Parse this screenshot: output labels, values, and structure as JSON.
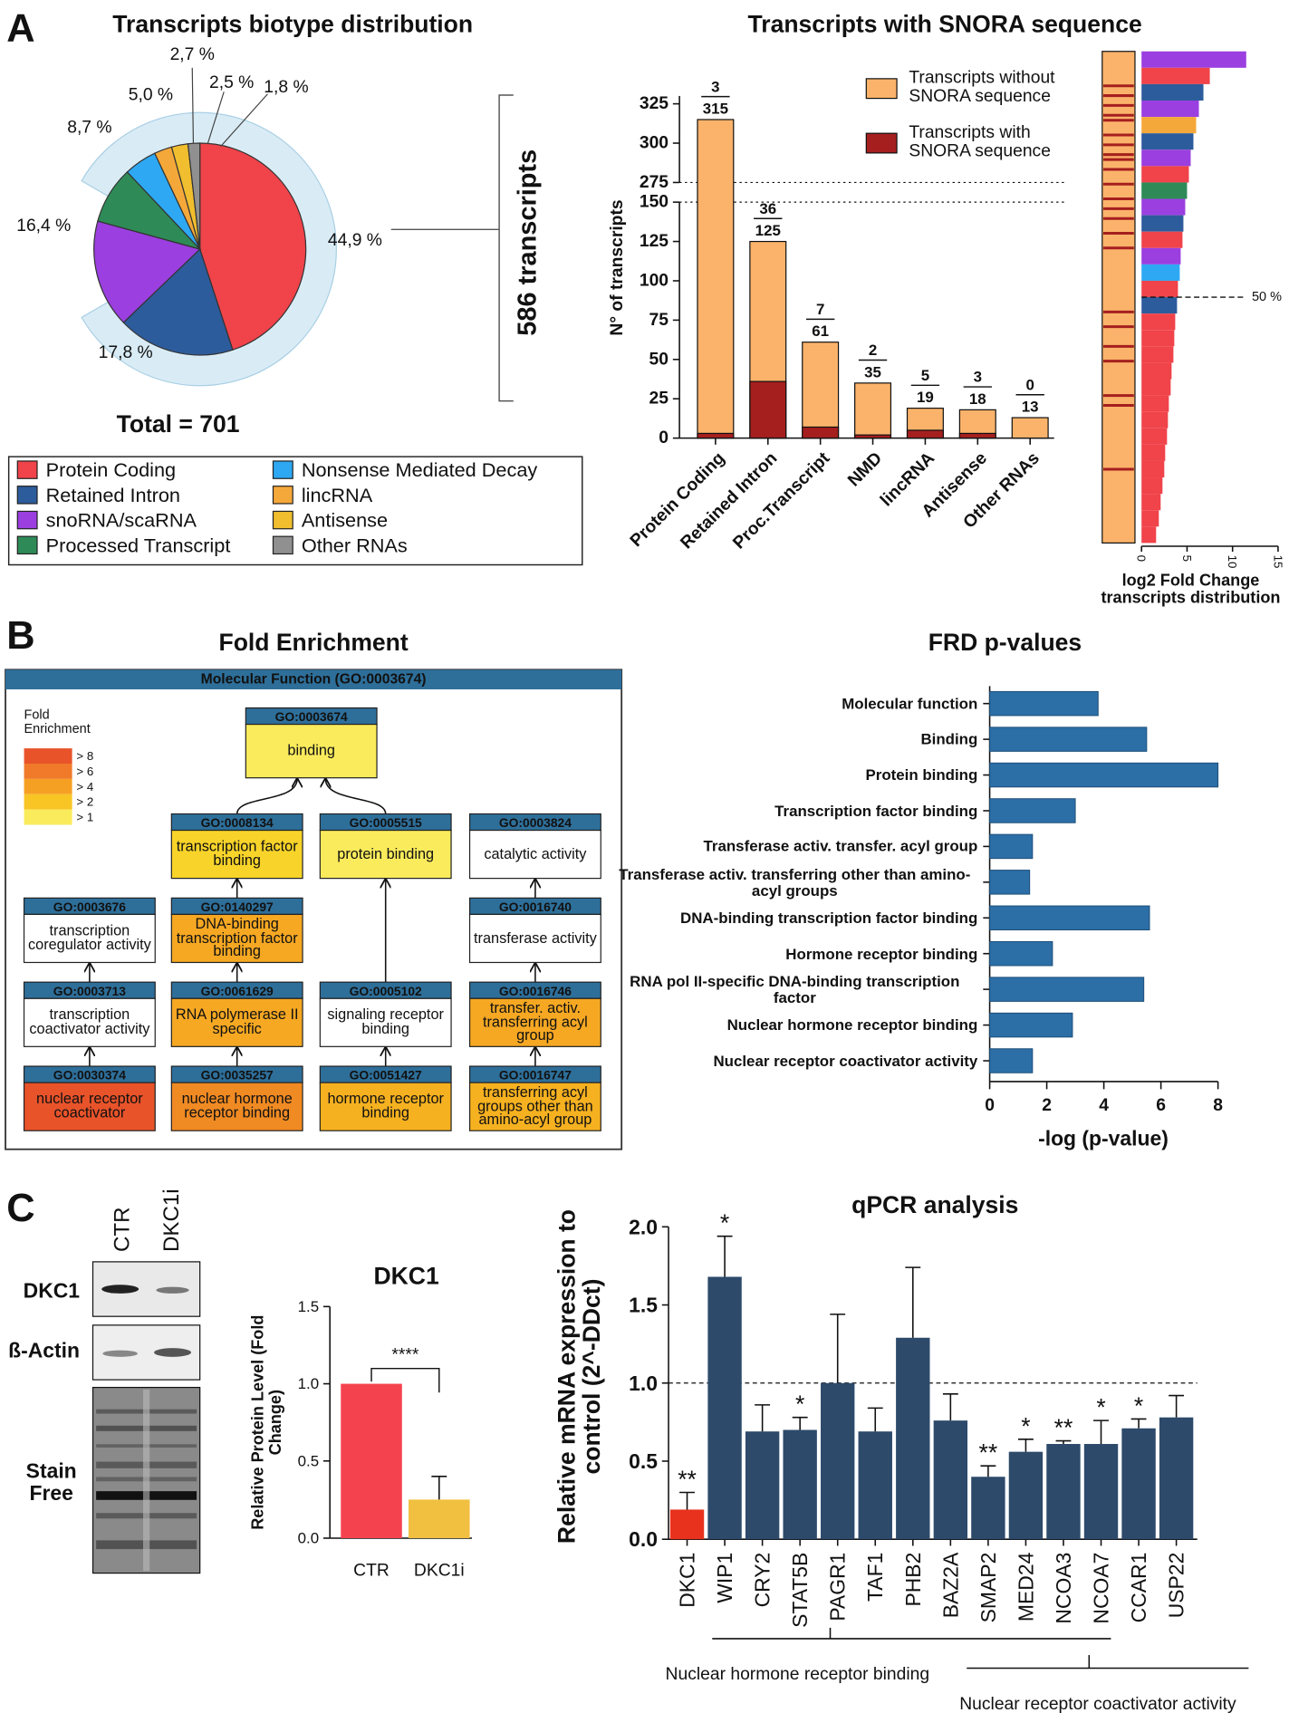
{
  "panels": [
    "A",
    "B",
    "C"
  ],
  "chart_data": [
    {
      "type": "pie",
      "title": "Transcripts biotype distribution",
      "categories": [
        "Protein Coding",
        "Retained Intron",
        "snoRNA/scaRNA",
        "Processed Transcript",
        "Nonsense Mediated Decay",
        "lincRNA",
        "Antisense",
        "Other RNAs"
      ],
      "values": [
        44.9,
        17.8,
        16.4,
        8.7,
        5.0,
        2.7,
        2.5,
        1.8
      ],
      "value_labels": [
        "44,9 %",
        "17,8 %",
        "16,4 %",
        "8,7 %",
        "5,0 %",
        "2,7 %",
        "2,5 %",
        "1,8 %"
      ],
      "colors": [
        "#f0434a",
        "#2d5c9c",
        "#9b3fe0",
        "#2e8b57",
        "#2ea8f2",
        "#f5a83a",
        "#f0be2e",
        "#909090"
      ],
      "total_label": "Total = 701",
      "annotation": "586 transcripts"
    },
    {
      "type": "bar",
      "mode": "overlap",
      "title": "Transcripts with SNORA sequence",
      "ylabel": "N° of transcripts",
      "categories": [
        "Protein Coding",
        "Retained Intron",
        "Proc.Transcript",
        "NMD",
        "lincRNA",
        "Antisense",
        "Other RNAs"
      ],
      "series": [
        {
          "name": "Transcripts without SNORA sequence",
          "color": "#fbb36b",
          "values": [
            315,
            125,
            61,
            35,
            19,
            18,
            13
          ]
        },
        {
          "name": "Transcripts with SNORA sequence",
          "color": "#a51f1f",
          "values": [
            3,
            36,
            7,
            2,
            5,
            3,
            0
          ]
        }
      ],
      "ylim": [
        0,
        150
      ],
      "yticks": [
        0,
        25,
        50,
        75,
        100,
        125,
        150
      ],
      "y_break": {
        "ylim": [
          275,
          330
        ],
        "yticks": [
          275,
          300,
          325
        ]
      }
    },
    {
      "type": "strip",
      "xlabel": "log2 Fold Change transcripts distribution",
      "xlim": [
        0,
        15
      ],
      "xticks": [
        0,
        5,
        10,
        15
      ],
      "ylim": [
        0,
        100
      ],
      "values": [
        11.5,
        7.5,
        6.8,
        6.3,
        6.0,
        5.7,
        5.4,
        5.2,
        5.0,
        4.8,
        4.6,
        4.5,
        4.3,
        4.2,
        4.0,
        3.9,
        3.7,
        3.6,
        3.5,
        3.3,
        3.2,
        3.0,
        2.9,
        2.8,
        2.6,
        2.5,
        2.3,
        2.1,
        1.9,
        1.6
      ],
      "colors": [
        "#9b3fe0",
        "#f0434a",
        "#2d5c9c",
        "#9b3fe0",
        "#f5a83a",
        "#2d5c9c",
        "#9b3fe0",
        "#f0434a",
        "#2e8b57",
        "#9b3fe0",
        "#2d5c9c",
        "#f0434a",
        "#9b3fe0",
        "#2ea8f2",
        "#f0434a",
        "#2d5c9c",
        "#f0434a",
        "#f0434a",
        "#f0434a",
        "#f0434a",
        "#f0434a",
        "#f0434a",
        "#f0434a",
        "#f0434a",
        "#f0434a",
        "#f0434a",
        "#f0434a",
        "#f0434a",
        "#f0434a",
        "#f0434a"
      ],
      "strip_color": "#fbb36b",
      "snora_color": "#a51f1f",
      "snora_rows": [
        7,
        9,
        11,
        13,
        14,
        17,
        19,
        21,
        22,
        24,
        27,
        30,
        32,
        34,
        37,
        40,
        53,
        56,
        60,
        63,
        70,
        72,
        85
      ],
      "marker": {
        "value": 50,
        "label": "50 %"
      }
    },
    {
      "type": "barh",
      "title": "FRD p-values",
      "xlabel": "-log (p-value)",
      "categories": [
        "Molecular function",
        "Binding",
        "Protein binding",
        "Transcription factor binding",
        "Transferase activ. transfer. acyl group",
        "Transferase activ. transferring other than amino-acyl groups",
        "DNA-binding transcription factor binding",
        "Hormone receptor binding",
        "RNA pol II-specific DNA-binding transcription factor",
        "Nuclear hormone receptor binding",
        "Nuclear receptor coactivator activity"
      ],
      "values": [
        3.8,
        5.5,
        8.0,
        3.0,
        1.5,
        1.4,
        5.6,
        2.2,
        5.4,
        2.9,
        1.5
      ],
      "color": "#2c6ea6",
      "xlim": [
        0,
        8
      ],
      "xticks": [
        0,
        2,
        4,
        6,
        8
      ]
    },
    {
      "type": "bar",
      "title": "DKC1",
      "ylabel": "Relative Protein Level (Fold Change)",
      "categories": [
        "CTR",
        "DKC1i"
      ],
      "values": [
        1.0,
        0.25
      ],
      "errors": [
        null,
        0.15
      ],
      "colors": [
        "#f5424f",
        "#f2c040"
      ],
      "ylim": [
        0,
        1.5
      ],
      "yticks": [
        {
          "value": 0,
          "label": "0.0"
        },
        0.5,
        {
          "value": 1,
          "label": "1.0"
        },
        1.5
      ],
      "significance": "****"
    },
    {
      "type": "bar",
      "title": "qPCR analysis",
      "ylabel": "Relative mRNA expression to control (2^-DDct)",
      "categories": [
        "DKC1",
        "WIP1",
        "CRY2",
        "STAT5B",
        "PAGR1",
        "TAF1",
        "PHB2",
        "BAZ2A",
        "SMAP2",
        "MED24",
        "NCOA3",
        "NCOA7",
        "CCAR1",
        "USP22"
      ],
      "values": [
        0.19,
        1.68,
        0.69,
        0.7,
        1.0,
        0.69,
        1.29,
        0.76,
        0.4,
        0.56,
        0.61,
        0.61,
        0.71,
        0.78
      ],
      "errors": [
        0.11,
        0.26,
        0.17,
        0.08,
        0.44,
        0.15,
        0.45,
        0.17,
        0.07,
        0.08,
        0.02,
        0.15,
        0.06,
        0.14
      ],
      "colors": [
        "#e8321e",
        "#2d4a6b",
        "#2d4a6b",
        "#2d4a6b",
        "#2d4a6b",
        "#2d4a6b",
        "#2d4a6b",
        "#2d4a6b",
        "#2d4a6b",
        "#2d4a6b",
        "#2d4a6b",
        "#2d4a6b",
        "#2d4a6b",
        "#2d4a6b"
      ],
      "significance": [
        "**",
        "*",
        null,
        "*",
        null,
        null,
        null,
        null,
        "**",
        "*",
        "**",
        "*",
        "*",
        null
      ],
      "ylim": [
        0,
        2
      ],
      "yticks": [
        {
          "value": 0,
          "label": "0.0"
        },
        0.5,
        {
          "value": 1,
          "label": "1.0"
        },
        1.5,
        {
          "value": 2,
          "label": "2.0"
        }
      ],
      "refline": 1,
      "groups": [
        "Nuclear hormone receptor binding",
        "Nuclear receptor coactivator activity"
      ]
    }
  ],
  "diagram": {
    "title": "Fold Enrichment",
    "header": "Molecular Function (GO:0003674)",
    "legend": {
      "title": "Fold Enrichment",
      "levels": [
        {
          "label": "> 8",
          "color": "#e8532a"
        },
        {
          "label": "> 6",
          "color": "#f07a2a"
        },
        {
          "label": "> 4",
          "color": "#f6a023"
        },
        {
          "label": "> 2",
          "color": "#f8c524"
        },
        {
          "label": "> 1",
          "color": "#faeb5c"
        }
      ]
    },
    "nodes": [
      {
        "id": "GO:0003674",
        "label": "binding",
        "color": "#faeb5c"
      },
      {
        "id": "GO:0008134",
        "label": "transcription factor binding",
        "color": "#f8d42a"
      },
      {
        "id": "GO:0005515",
        "label": "protein binding",
        "color": "#faeb5c"
      },
      {
        "id": "GO:0003824",
        "label": "catalytic activity",
        "color": "#ffffff"
      },
      {
        "id": "GO:0003676",
        "label": "transcription coregulator activity",
        "color": "#ffffff"
      },
      {
        "id": "GO:0140297",
        "label": "DNA-binding transcription factor binding",
        "color": "#f6a823"
      },
      {
        "id": "GO:0016740",
        "label": "transferase activity",
        "color": "#ffffff"
      },
      {
        "id": "GO:0003713",
        "label": "transcription coactivator activity",
        "color": "#ffffff"
      },
      {
        "id": "GO:0061629",
        "label": "RNA polymerase II specific",
        "color": "#f6a823"
      },
      {
        "id": "GO:0005102",
        "label": "signaling receptor binding",
        "color": "#ffffff"
      },
      {
        "id": "GO:0016746",
        "label": "transfer. activ. transferring acyl group",
        "color": "#f6a823"
      },
      {
        "id": "GO:0030374",
        "label": "nuclear receptor coactivator",
        "color": "#e8532a"
      },
      {
        "id": "GO:0035257",
        "label": "nuclear hormone receptor binding",
        "color": "#f08a23"
      },
      {
        "id": "GO:0051427",
        "label": "hormone receptor binding",
        "color": "#f6b120"
      },
      {
        "id": "GO:0016747",
        "label": "transferring acyl groups other than amino-acyl group",
        "color": "#f6b120"
      }
    ]
  },
  "blot": {
    "lanes": [
      "CTR",
      "DKC1i"
    ],
    "rows": [
      "DKC1",
      "ß-Actin",
      "Stain Free"
    ]
  }
}
